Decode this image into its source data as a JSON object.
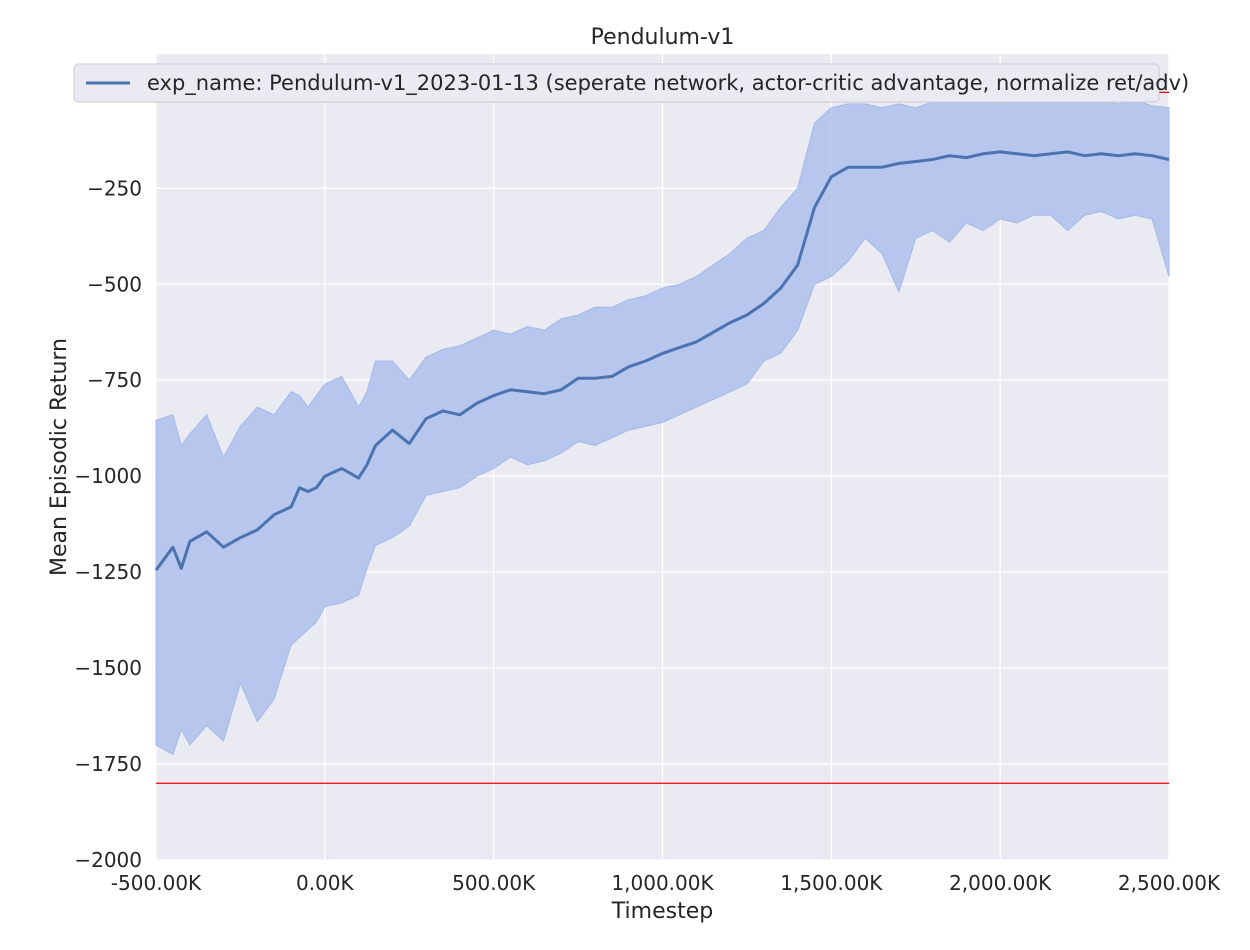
{
  "chart_data": {
    "type": "line",
    "title": "Pendulum-v1",
    "xlabel": "Timestep",
    "ylabel": "Mean Episodic Return",
    "xlim": [
      -500000,
      2500000
    ],
    "ylim": [
      -2000,
      100
    ],
    "xticks": [
      -500000,
      0,
      500000,
      1000000,
      1500000,
      2000000,
      2500000
    ],
    "xtick_labels": [
      "-500.00K",
      "0.00K",
      "500.00K",
      "1,000.00K",
      "1,500.00K",
      "2,000.00K",
      "2,500.00K"
    ],
    "yticks": [
      0,
      -250,
      -500,
      -750,
      -1000,
      -1250,
      -1500,
      -1750,
      -2000
    ],
    "ytick_labels": [
      "0",
      "−250",
      "−500",
      "−750",
      "−1000",
      "−1250",
      "−1500",
      "−1750",
      "−2000"
    ],
    "grid": true,
    "legend_placement": "top",
    "reference_lines": [
      {
        "y": 0,
        "color": "#e8000b"
      },
      {
        "y": -1800,
        "color": "#e8000b"
      }
    ],
    "series": [
      {
        "name": "exp_name: Pendulum-v1_2023-01-13 (seperate network, actor-critic advantage, normalize ret/adv)",
        "color": "#4c72b0",
        "band_color": "#a4b9ea",
        "x": [
          -500000,
          -450000,
          -425000,
          -400000,
          -350000,
          -300000,
          -250000,
          -200000,
          -150000,
          -100000,
          -75000,
          -50000,
          -25000,
          0,
          50000,
          100000,
          125000,
          150000,
          200000,
          250000,
          300000,
          350000,
          400000,
          450000,
          500000,
          550000,
          600000,
          650000,
          700000,
          750000,
          800000,
          850000,
          900000,
          950000,
          1000000,
          1050000,
          1100000,
          1150000,
          1200000,
          1250000,
          1300000,
          1350000,
          1400000,
          1450000,
          1500000,
          1550000,
          1600000,
          1650000,
          1700000,
          1750000,
          1800000,
          1850000,
          1900000,
          1950000,
          2000000,
          2050000,
          2100000,
          2150000,
          2200000,
          2250000,
          2300000,
          2350000,
          2400000,
          2450000,
          2500000
        ],
        "mean": [
          -1245,
          -1185,
          -1240,
          -1170,
          -1145,
          -1185,
          -1160,
          -1140,
          -1100,
          -1080,
          -1030,
          -1040,
          -1030,
          -1000,
          -980,
          -1005,
          -970,
          -920,
          -880,
          -915,
          -850,
          -830,
          -840,
          -810,
          -790,
          -775,
          -780,
          -785,
          -775,
          -745,
          -745,
          -740,
          -715,
          -700,
          -680,
          -665,
          -650,
          -625,
          -600,
          -580,
          -550,
          -510,
          -450,
          -300,
          -220,
          -195,
          -195,
          -195,
          -185,
          -180,
          -175,
          -165,
          -170,
          -160,
          -155,
          -160,
          -165,
          -160,
          -155,
          -165,
          -160,
          -165,
          -160,
          -165,
          -175
        ],
        "upper": [
          -855,
          -840,
          -920,
          -890,
          -840,
          -950,
          -870,
          -820,
          -840,
          -780,
          -790,
          -820,
          -790,
          -760,
          -740,
          -820,
          -780,
          -700,
          -700,
          -750,
          -690,
          -670,
          -660,
          -640,
          -620,
          -630,
          -610,
          -620,
          -590,
          -580,
          -560,
          -560,
          -540,
          -530,
          -510,
          -500,
          -480,
          -450,
          -420,
          -380,
          -360,
          -300,
          -250,
          -80,
          -40,
          -30,
          -30,
          -40,
          -30,
          -40,
          -25,
          -20,
          -25,
          -20,
          -25,
          -20,
          -20,
          -20,
          -20,
          -25,
          -20,
          -30,
          -20,
          -35,
          -40
        ],
        "lower": [
          -1700,
          -1725,
          -1660,
          -1700,
          -1650,
          -1690,
          -1540,
          -1640,
          -1580,
          -1440,
          -1420,
          -1400,
          -1380,
          -1340,
          -1330,
          -1310,
          -1240,
          -1180,
          -1160,
          -1130,
          -1050,
          -1040,
          -1030,
          -1000,
          -980,
          -950,
          -970,
          -960,
          -940,
          -910,
          -920,
          -900,
          -880,
          -870,
          -860,
          -840,
          -820,
          -800,
          -780,
          -760,
          -700,
          -680,
          -620,
          -500,
          -480,
          -440,
          -380,
          -420,
          -520,
          -380,
          -360,
          -390,
          -340,
          -360,
          -330,
          -340,
          -320,
          -320,
          -360,
          -320,
          -310,
          -330,
          -320,
          -330,
          -480
        ]
      }
    ]
  }
}
